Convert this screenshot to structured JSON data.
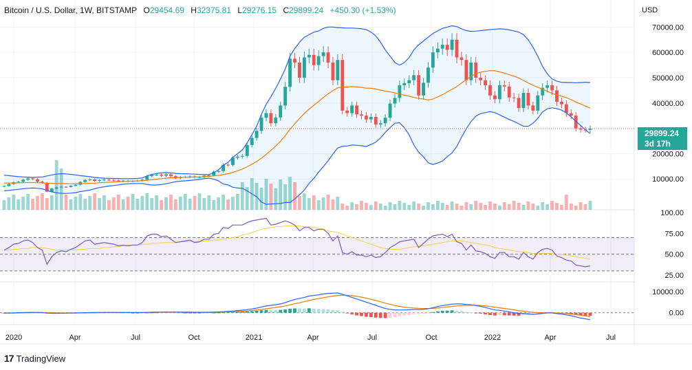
{
  "header": {
    "title": "Bitcoin / U.S. Dollar, 1W, BITSTAMP",
    "open_label": "O",
    "open_value": "29454.69",
    "high_label": "H",
    "high_value": "32375.81",
    "low_label": "L",
    "low_value": "29276.15",
    "close_label": "C",
    "close_value": "29899.24",
    "change": "+450.30 (+1.53%)"
  },
  "axis": {
    "unit": "USD",
    "price_ticks": [
      "70000.00",
      "60000.00",
      "50000.00",
      "40000.00",
      "20000.00",
      "10000.00"
    ],
    "rsi_ticks": [
      "100.00",
      "75.00",
      "50.00",
      "25.00"
    ],
    "macd_ticks": [
      "10000.00",
      "0.00"
    ],
    "time_ticks": [
      "2020",
      "Apr",
      "Jul",
      "Oct",
      "2021",
      "Apr",
      "Jul",
      "Oct",
      "2022",
      "Apr",
      "Jul"
    ]
  },
  "current_price": {
    "value": "29899.24",
    "countdown": "3d 17h"
  },
  "brand": {
    "logo": "17",
    "name": "TradingView"
  },
  "colors": {
    "up": "#26a69a",
    "down": "#ef5350",
    "bands": "#2962ff",
    "basis": "#f57c00",
    "rsi": "#7e57c2",
    "rsi_ma": "#f5d142",
    "macd": "#2962ff",
    "signal": "#f57c00"
  },
  "chart_data": {
    "type": "candlestick",
    "symbol": "Bitcoin / U.S. Dollar",
    "interval": "1W",
    "exchange": "BITSTAMP",
    "price_scale": "linear",
    "ylim": [
      0,
      72000
    ],
    "last_close": 29899.24,
    "close_series": [
      7200,
      8000,
      8700,
      8900,
      9700,
      10200,
      9900,
      8900,
      8400,
      5000,
      6200,
      6700,
      6900,
      6800,
      7300,
      7700,
      8800,
      9600,
      9800,
      9200,
      9500,
      9700,
      9600,
      9400,
      9100,
      9300,
      9100,
      9200,
      9300,
      9700,
      11100,
      11600,
      11700,
      11300,
      11800,
      11100,
      10300,
      10700,
      10800,
      11000,
      10600,
      10700,
      11300,
      11400,
      12900,
      13100,
      15600,
      15500,
      18400,
      18800,
      19100,
      23400,
      26200,
      29000,
      34200,
      36000,
      32000,
      34300,
      39000,
      46400,
      57500,
      56000,
      50000,
      58000,
      59000,
      55000,
      58500,
      60000,
      56000,
      49000,
      57000,
      37000,
      36000,
      39000,
      35500,
      35000,
      33500,
      34500,
      31500,
      32000,
      34200,
      39800,
      42000,
      47000,
      47800,
      49000,
      51000,
      43000,
      48000,
      54000,
      60000,
      61500,
      63000,
      61000,
      65000,
      58000,
      57000,
      49000,
      56000,
      50000,
      49000,
      47000,
      43000,
      41500,
      47000,
      46500,
      42200,
      42000,
      38000,
      44000,
      39000,
      37000,
      43000,
      46000,
      47000,
      45000,
      40500,
      39500,
      36000,
      35000,
      30000,
      29500,
      29400,
      29900
    ],
    "bollinger": {
      "length": 20,
      "upper": [
        11500,
        11300,
        11100,
        10900,
        10800,
        10700,
        10600,
        10700,
        10800,
        11200,
        11600,
        11900,
        12100,
        12000,
        11800,
        11600,
        11300,
        11100,
        10900,
        10600,
        10400,
        10300,
        10250,
        10200,
        10150,
        10100,
        10100,
        10150,
        10200,
        10400,
        11200,
        11800,
        12200,
        12400,
        12500,
        12400,
        12200,
        12100,
        12050,
        12000,
        11900,
        11800,
        11700,
        11700,
        12500,
        13600,
        15400,
        16600,
        18500,
        20000,
        21500,
        24300,
        27500,
        30800,
        35500,
        39500,
        42500,
        45800,
        49500,
        53500,
        58500,
        61500,
        64000,
        66000,
        67000,
        68000,
        68500,
        69500,
        70000,
        70000,
        69800,
        69700,
        69600,
        69600,
        69500,
        69300,
        69000,
        68000,
        66500,
        64000,
        61000,
        58500,
        56000,
        55000,
        56000,
        58000,
        61000,
        63000,
        64500,
        66000,
        67500,
        68500,
        69500,
        70000,
        70500,
        70200,
        69300,
        68600,
        68300,
        68400,
        68600,
        68800,
        69000,
        69200,
        69300,
        69200,
        68900,
        68500,
        68000,
        67000,
        65000,
        62000,
        58500,
        54500,
        51500,
        49500,
        48600,
        48200,
        48100,
        48100,
        48000,
        48100,
        48200,
        48100
      ],
      "basis": [
        8400,
        8400,
        8400,
        8450,
        8500,
        8550,
        8550,
        8500,
        8450,
        8350,
        8250,
        8200,
        8200,
        8150,
        8100,
        8100,
        8150,
        8200,
        8250,
        8350,
        8500,
        8600,
        8700,
        8800,
        8900,
        9000,
        9100,
        9150,
        9200,
        9300,
        9500,
        9700,
        9900,
        10100,
        10300,
        10450,
        10550,
        10600,
        10650,
        10700,
        10750,
        10800,
        10900,
        11000,
        11200,
        11400,
        11700,
        12100,
        12600,
        13200,
        13900,
        14800,
        15800,
        16900,
        18200,
        19700,
        21300,
        23000,
        24900,
        27100,
        29600,
        31800,
        33900,
        35800,
        37600,
        39100,
        40600,
        42200,
        43600,
        44900,
        46000,
        46300,
        46300,
        46500,
        46400,
        46200,
        45900,
        45800,
        45500,
        45100,
        44700,
        44400,
        44000,
        43600,
        43100,
        42700,
        42200,
        41800,
        41600,
        41200,
        41600,
        42400,
        43300,
        44400,
        45400,
        46500,
        47900,
        49200,
        50500,
        51600,
        52200,
        52500,
        52800,
        52700,
        52300,
        51800,
        51200,
        50600,
        49900,
        48900,
        47900,
        47000,
        46200,
        45500,
        44600,
        43800,
        43200,
        42700,
        42100,
        41300,
        40400,
        39600,
        38800,
        38000
      ],
      "lower": [
        5300,
        5500,
        5700,
        5900,
        6100,
        6300,
        6400,
        6300,
        6100,
        5400,
        4900,
        4500,
        4300,
        4300,
        4400,
        4600,
        5000,
        5300,
        5600,
        6100,
        6600,
        6900,
        7200,
        7400,
        7650,
        7900,
        8100,
        8150,
        8200,
        8200,
        7800,
        7600,
        7600,
        7800,
        8100,
        8500,
        8900,
        9100,
        9250,
        9400,
        9600,
        9800,
        10100,
        10300,
        9900,
        9200,
        8000,
        7600,
        6700,
        6400,
        6300,
        5300,
        4100,
        3000,
        900,
        0,
        100,
        200,
        300,
        700,
        700,
        2100,
        3800,
        5600,
        8200,
        10200,
        12700,
        14900,
        17200,
        19800,
        22200,
        22900,
        23000,
        23400,
        23300,
        23100,
        22800,
        23600,
        24500,
        26200,
        28400,
        30300,
        32000,
        32200,
        30200,
        27400,
        23400,
        20600,
        18700,
        16400,
        15700,
        16300,
        17100,
        18800,
        20300,
        22800,
        26500,
        29800,
        32700,
        34800,
        35800,
        36200,
        36600,
        36200,
        35300,
        34400,
        33500,
        32700,
        31800,
        30800,
        30800,
        32000,
        33900,
        36500,
        37700,
        38100,
        37800,
        37200,
        36100,
        34500,
        32800,
        31100,
        29400,
        27900
      ]
    },
    "volume": {
      "ylim": [
        0,
        80000
      ],
      "max_note": "volume bars at chart bottom, colored by candle direction"
    },
    "rsi": {
      "length": 14,
      "bands": [
        30,
        50,
        70
      ],
      "ylim": [
        25,
        100
      ],
      "values": [
        55,
        58,
        62,
        63,
        66,
        67,
        64,
        58,
        55,
        38,
        47,
        52,
        54,
        53,
        56,
        58,
        62,
        66,
        67,
        62,
        63,
        64,
        63,
        62,
        60,
        61,
        60,
        61,
        61,
        64,
        72,
        74,
        74,
        71,
        72,
        68,
        64,
        65,
        66,
        67,
        64,
        65,
        68,
        68,
        74,
        75,
        82,
        81,
        85,
        85,
        85,
        88,
        90,
        91,
        92,
        93,
        85,
        86,
        88,
        90,
        88,
        85,
        78,
        82,
        82,
        78,
        80,
        80,
        75,
        66,
        72,
        52,
        50,
        53,
        49,
        49,
        47,
        49,
        46,
        47,
        52,
        58,
        61,
        65,
        66,
        67,
        68,
        58,
        63,
        68,
        72,
        73,
        74,
        71,
        74,
        65,
        63,
        55,
        61,
        54,
        53,
        51,
        47,
        45,
        52,
        52,
        47,
        47,
        44,
        52,
        47,
        44,
        52,
        56,
        57,
        55,
        48,
        46,
        43,
        42,
        37,
        36,
        35,
        36
      ],
      "ma": [
        55,
        55,
        56,
        56,
        57,
        57,
        58,
        58,
        58,
        57,
        56,
        55,
        55,
        55,
        55,
        55,
        56,
        56,
        57,
        57,
        57,
        58,
        58,
        59,
        59,
        60,
        61,
        61,
        61,
        62,
        62,
        63,
        63,
        64,
        64,
        64,
        64,
        65,
        65,
        65,
        65,
        65,
        66,
        66,
        67,
        67,
        68,
        69,
        70,
        71,
        73,
        74,
        76,
        78,
        80,
        81,
        82,
        83,
        83,
        84,
        84,
        84,
        84,
        83,
        83,
        82,
        81,
        80,
        78,
        77,
        76,
        74,
        72,
        70,
        68,
        66,
        64,
        62,
        60,
        58,
        57,
        56,
        56,
        56,
        57,
        58,
        59,
        59,
        60,
        61,
        62,
        63,
        64,
        65,
        66,
        66,
        66,
        65,
        64,
        63,
        62,
        61,
        60,
        58,
        57,
        56,
        55,
        54,
        53,
        53,
        52,
        51,
        51,
        51,
        51,
        51,
        50,
        50,
        49,
        48,
        47,
        46,
        45,
        44
      ]
    },
    "macd": {
      "fast": 12,
      "slow": 26,
      "signal": [
        -150,
        -150,
        -140,
        -110,
        -70,
        -30,
        10,
        40,
        50,
        0,
        -50,
        -90,
        -120,
        -140,
        -140,
        -130,
        -110,
        -80,
        -50,
        -20,
        10,
        40,
        60,
        80,
        90,
        90,
        90,
        90,
        90,
        90,
        100,
        120,
        150,
        180,
        210,
        230,
        250,
        250,
        250,
        250,
        240,
        230,
        220,
        220,
        230,
        250,
        300,
        370,
        460,
        570,
        700,
        860,
        1040,
        1270,
        1550,
        1880,
        2200,
        2530,
        2860,
        3240,
        3720,
        4240,
        4750,
        5260,
        5790,
        6270,
        6720,
        7160,
        7560,
        7910,
        8210,
        8330,
        8290,
        8100,
        7780,
        7390,
        6910,
        6390,
        5810,
        5190,
        4550,
        3960,
        3430,
        3000,
        2660,
        2410,
        2250,
        2100,
        2000,
        1990,
        2070,
        2230,
        2460,
        2710,
        2990,
        3230,
        3420,
        3520,
        3580,
        3550,
        3440,
        3250,
        2980,
        2640,
        2330,
        2030,
        1700,
        1360,
        1010,
        730,
        460,
        210,
        50,
        -20,
        -40,
        -50,
        -120,
        -240,
        -390,
        -590,
        -870,
        -1200,
        -1540,
        -1890
      ],
      "ylim": [
        -5000,
        12000
      ],
      "macd": [
        -200,
        -150,
        -80,
        0,
        80,
        150,
        180,
        150,
        100,
        -200,
        -250,
        -250,
        -230,
        -200,
        -160,
        -110,
        -40,
        20,
        80,
        110,
        130,
        150,
        160,
        150,
        130,
        110,
        90,
        80,
        70,
        80,
        150,
        220,
        280,
        300,
        320,
        310,
        280,
        260,
        240,
        220,
        200,
        190,
        200,
        210,
        280,
        350,
        500,
        640,
        820,
        1000,
        1200,
        1480,
        1800,
        2200,
        2700,
        3200,
        3500,
        3800,
        4200,
        4800,
        5600,
        6300,
        6800,
        7300,
        7900,
        8200,
        8500,
        8900,
        9200,
        9300,
        9400,
        8800,
        8000,
        7300,
        6500,
        5800,
        5000,
        4300,
        3500,
        2700,
        2000,
        1600,
        1300,
        1300,
        1300,
        1400,
        1600,
        1500,
        1600,
        1900,
        2400,
        2900,
        3400,
        3700,
        4100,
        4200,
        4200,
        3900,
        3800,
        3400,
        3000,
        2500,
        1900,
        1300,
        1100,
        800,
        400,
        0,
        -400,
        -400,
        -600,
        -800,
        -600,
        -300,
        -100,
        -100,
        -400,
        -700,
        -1000,
        -1400,
        -2000,
        -2500,
        -2900,
        -3300
      ],
      "histogram_note": "histogram = macd - signal, colored by sign and direction"
    }
  }
}
